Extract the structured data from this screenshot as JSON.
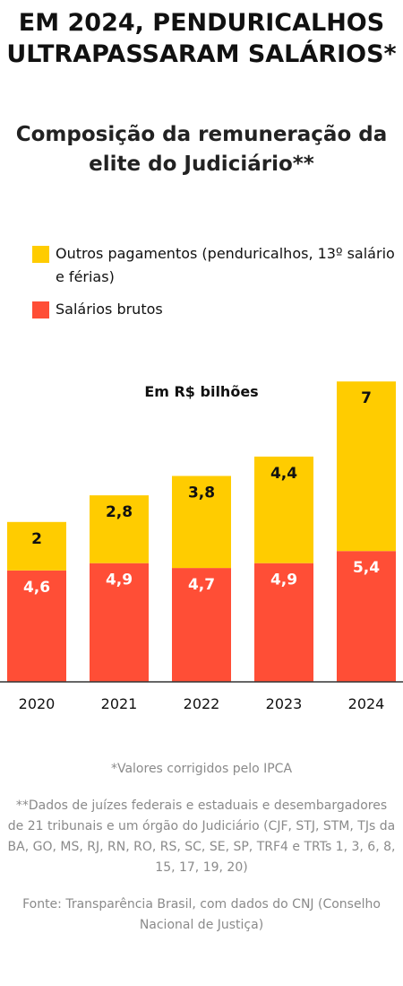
{
  "header": {
    "title": "EM 2024, PENDURICALHOS ULTRAPASSARAM SALÁRIOS*",
    "subtitle": "Composição da remuneração da elite do Judiciário**"
  },
  "colors": {
    "outros": "#FFCC00",
    "salarios": "#FF4E36",
    "baseline": "#333333"
  },
  "notes": {
    "ipca": "*Valores corrigidos pelo IPCA",
    "dados": "**Dados de juízes federais e estaduais e desembargadores de 21 tribunais e um órgão do Judiciário (CJF, STJ, STM, TJs da BA, GO, MS, RJ, RN, RO, RS, SC, SE, SP, TRF4 e TRTs 1, 3, 6, 8, 15, 17, 19, 20)",
    "fonte": "Fonte: Transparência Brasil, com dados do CNJ (Conselho Nacional de Justiça)"
  },
  "chart_data": {
    "type": "bar",
    "stacked": true,
    "unit_label": "Em R$ bilhões",
    "categories": [
      "2020",
      "2021",
      "2022",
      "2023",
      "2024"
    ],
    "series": [
      {
        "name": "Salários brutos",
        "values": [
          4.6,
          4.9,
          4.7,
          4.9,
          5.4
        ],
        "labels": [
          "4,6",
          "4,9",
          "4,7",
          "4,9",
          "5,4"
        ],
        "color": "#FF4E36"
      },
      {
        "name": "Outros pagamentos (penduricalhos, 13º salário e férias)",
        "values": [
          2,
          2.8,
          3.8,
          4.4,
          7
        ],
        "labels": [
          "2",
          "2,8",
          "3,8",
          "4,4",
          "7"
        ],
        "color": "#FFCC00"
      }
    ],
    "legend_position": "top-left",
    "grid": false
  }
}
